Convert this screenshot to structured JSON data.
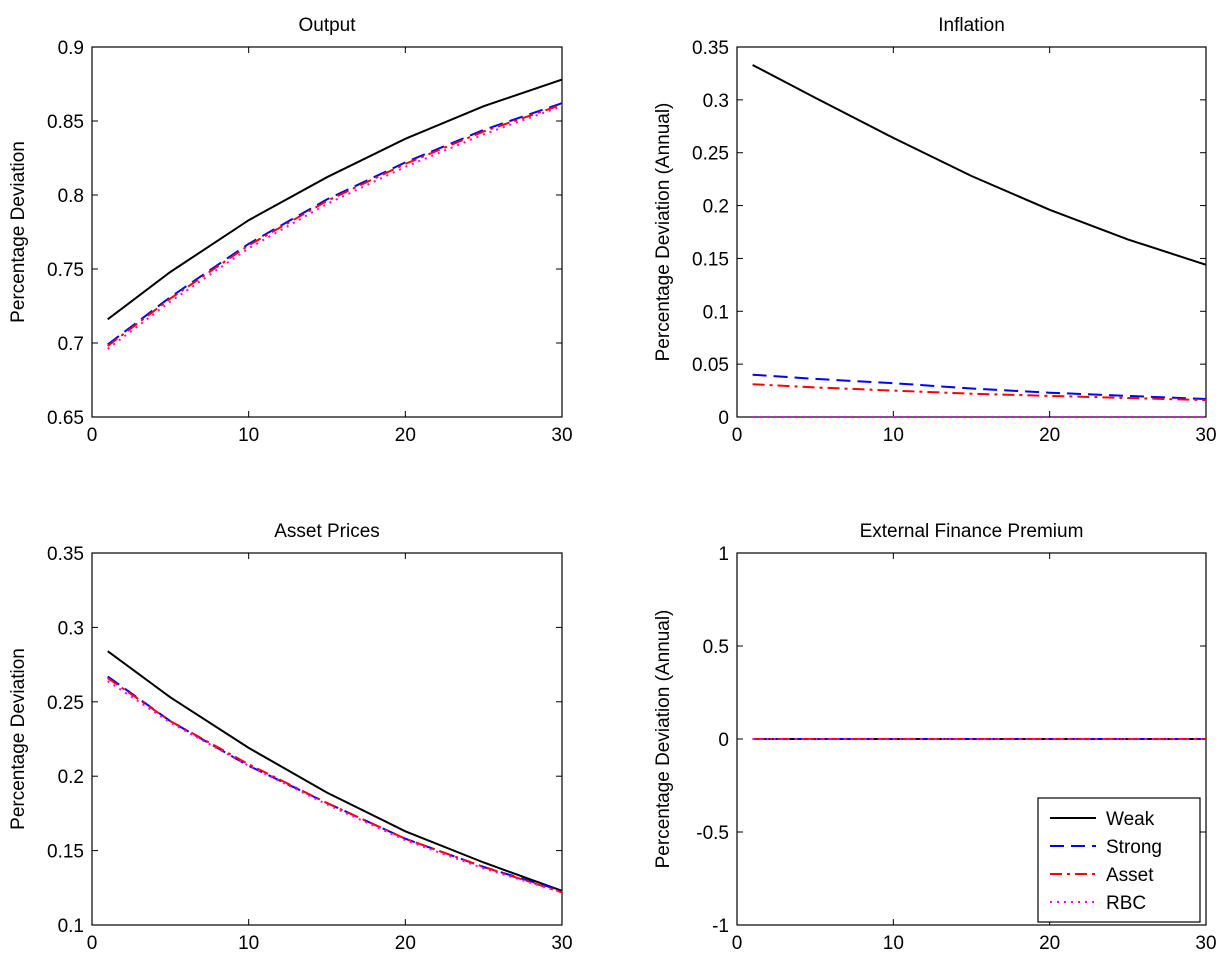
{
  "chart_data": [
    {
      "type": "line",
      "title": "Output",
      "xlabel": "",
      "ylabel": "Percentage Deviation",
      "xlim": [
        0,
        30
      ],
      "ylim": [
        0.65,
        0.9
      ],
      "xticks": [
        0,
        10,
        20,
        30
      ],
      "xtick_labels": [
        "0",
        "10",
        "20",
        "30"
      ],
      "yticks": [
        0.65,
        0.7,
        0.75,
        0.8,
        0.85,
        0.9
      ],
      "ytick_labels": [
        "0.65",
        "0.7",
        "0.75",
        "0.8",
        "0.85",
        "0.9"
      ],
      "grid": false,
      "legend": false,
      "x": [
        1,
        5,
        10,
        15,
        20,
        25,
        30
      ],
      "series": [
        {
          "name": "Weak",
          "color": "#000000",
          "dash": "solid",
          "values": [
            0.716,
            0.748,
            0.783,
            0.812,
            0.838,
            0.86,
            0.878
          ]
        },
        {
          "name": "Strong",
          "color": "#0000ff",
          "dash": "dashed",
          "values": [
            0.699,
            0.731,
            0.767,
            0.797,
            0.822,
            0.844,
            0.862
          ]
        },
        {
          "name": "Asset",
          "color": "#ff0000",
          "dash": "dashdot",
          "values": [
            0.698,
            0.73,
            0.766,
            0.796,
            0.821,
            0.843,
            0.861
          ]
        },
        {
          "name": "RBC",
          "color": "#ff00ff",
          "dash": "dotted",
          "values": [
            0.696,
            0.728,
            0.764,
            0.794,
            0.819,
            0.841,
            0.86
          ]
        }
      ]
    },
    {
      "type": "line",
      "title": "Inflation",
      "xlabel": "",
      "ylabel": "Percentage Deviation (Annual)",
      "xlim": [
        0,
        30
      ],
      "ylim": [
        0,
        0.35
      ],
      "xticks": [
        0,
        10,
        20,
        30
      ],
      "xtick_labels": [
        "0",
        "10",
        "20",
        "30"
      ],
      "yticks": [
        0,
        0.05,
        0.1,
        0.15,
        0.2,
        0.25,
        0.3,
        0.35
      ],
      "ytick_labels": [
        "0",
        "0.05",
        "0.1",
        "0.15",
        "0.2",
        "0.25",
        "0.3",
        "0.35"
      ],
      "grid": false,
      "legend": false,
      "x": [
        1,
        5,
        10,
        15,
        20,
        25,
        30
      ],
      "series": [
        {
          "name": "Weak",
          "color": "#000000",
          "dash": "solid",
          "values": [
            0.333,
            0.302,
            0.264,
            0.228,
            0.196,
            0.168,
            0.144
          ]
        },
        {
          "name": "Strong",
          "color": "#0000ff",
          "dash": "dashed",
          "values": [
            0.04,
            0.036,
            0.032,
            0.027,
            0.023,
            0.02,
            0.017
          ]
        },
        {
          "name": "Asset",
          "color": "#ff0000",
          "dash": "dashdot",
          "values": [
            0.031,
            0.028,
            0.025,
            0.022,
            0.02,
            0.018,
            0.016
          ]
        },
        {
          "name": "RBC",
          "color": "#ff00ff",
          "dash": "dotted",
          "values": [
            0,
            0,
            0,
            0,
            0,
            0,
            0
          ]
        }
      ]
    },
    {
      "type": "line",
      "title": "Asset Prices",
      "xlabel": "",
      "ylabel": "Percentage Deviation",
      "xlim": [
        0,
        30
      ],
      "ylim": [
        0.1,
        0.35
      ],
      "xticks": [
        0,
        10,
        20,
        30
      ],
      "xtick_labels": [
        "0",
        "10",
        "20",
        "30"
      ],
      "yticks": [
        0.1,
        0.15,
        0.2,
        0.25,
        0.3,
        0.35
      ],
      "ytick_labels": [
        "0.1",
        "0.15",
        "0.2",
        "0.25",
        "0.3",
        "0.35"
      ],
      "grid": false,
      "legend": false,
      "x": [
        1,
        5,
        10,
        15,
        20,
        25,
        30
      ],
      "series": [
        {
          "name": "Weak",
          "color": "#000000",
          "dash": "solid",
          "values": [
            0.284,
            0.253,
            0.219,
            0.189,
            0.163,
            0.142,
            0.123
          ]
        },
        {
          "name": "Strong",
          "color": "#0000ff",
          "dash": "dashed",
          "values": [
            0.267,
            0.237,
            0.207,
            0.182,
            0.158,
            0.139,
            0.123
          ]
        },
        {
          "name": "Asset",
          "color": "#ff0000",
          "dash": "dashdot",
          "values": [
            0.266,
            0.237,
            0.208,
            0.182,
            0.158,
            0.139,
            0.122
          ]
        },
        {
          "name": "RBC",
          "color": "#ff00ff",
          "dash": "dotted",
          "values": [
            0.264,
            0.236,
            0.207,
            0.181,
            0.157,
            0.138,
            0.122
          ]
        }
      ]
    },
    {
      "type": "line",
      "title": "External Finance Premium",
      "xlabel": "",
      "ylabel": "Percentage Deviation (Annual)",
      "xlim": [
        0,
        30
      ],
      "ylim": [
        -1,
        1
      ],
      "xticks": [
        0,
        10,
        20,
        30
      ],
      "xtick_labels": [
        "0",
        "10",
        "20",
        "30"
      ],
      "yticks": [
        -1,
        -0.5,
        0,
        0.5,
        1
      ],
      "ytick_labels": [
        "-1",
        "-0.5",
        "0",
        "0.5",
        "1"
      ],
      "grid": false,
      "legend": true,
      "legend_position": "bottom-right",
      "x": [
        1,
        5,
        10,
        15,
        20,
        25,
        30
      ],
      "series": [
        {
          "name": "Weak",
          "color": "#000000",
          "dash": "solid",
          "values": [
            0,
            0,
            0,
            0,
            0,
            0,
            0
          ]
        },
        {
          "name": "Strong",
          "color": "#0000ff",
          "dash": "dashed",
          "values": [
            0,
            0,
            0,
            0,
            0,
            0,
            0
          ]
        },
        {
          "name": "Asset",
          "color": "#ff0000",
          "dash": "dashdot",
          "values": [
            0,
            0,
            0,
            0,
            0,
            0,
            0
          ]
        },
        {
          "name": "RBC",
          "color": "#ff00ff",
          "dash": "dotted",
          "values": [
            0,
            0,
            0,
            0,
            0,
            0,
            0
          ]
        }
      ]
    }
  ]
}
